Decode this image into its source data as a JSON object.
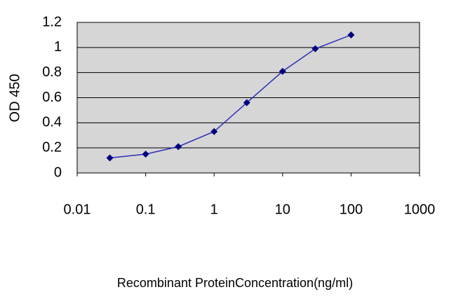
{
  "chart_data": {
    "type": "line",
    "x_label": "Recombinant ProteinConcentration(ng/ml)",
    "y_label": "OD 450",
    "x": [
      0.03,
      0.1,
      0.3,
      1,
      3,
      10,
      30,
      100
    ],
    "values": [
      0.12,
      0.15,
      0.21,
      0.33,
      0.56,
      0.81,
      0.99,
      1.1
    ],
    "color": "#2e2eb8",
    "marker_color": "#000080",
    "xlim": [
      0.01,
      1000
    ],
    "xticks": [
      0.01,
      0.1,
      1,
      10,
      100,
      1000
    ],
    "xscale": "log",
    "ylim": [
      0,
      1.2
    ],
    "yticks": [
      0,
      0.2,
      0.4,
      0.6,
      0.8,
      1,
      1.2
    ],
    "grid": true
  }
}
